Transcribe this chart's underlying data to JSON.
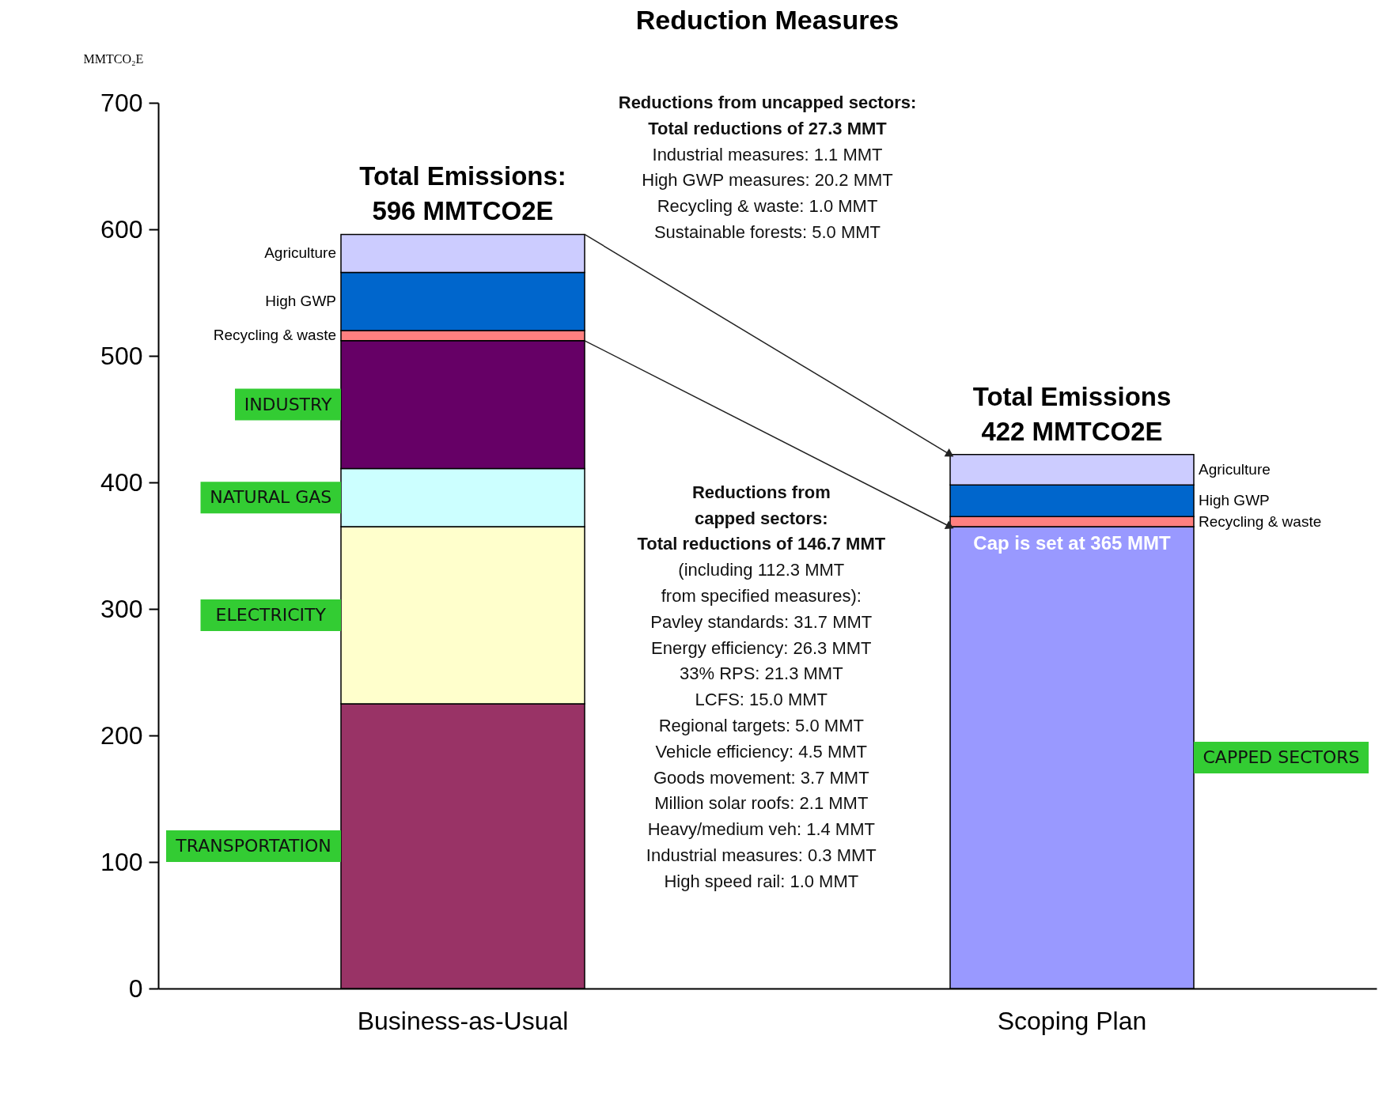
{
  "chart_data": {
    "type": "bar",
    "stacked": true,
    "title": "Reduction Measures",
    "ylabel": "MMTCO₂E",
    "categories": [
      "Business-as-Usual",
      "Scoping Plan"
    ],
    "ylim": [
      0,
      700
    ],
    "yticks": [
      0,
      100,
      200,
      300,
      400,
      500,
      600,
      700
    ],
    "grid": false,
    "legend": false,
    "series": [
      {
        "name": "TRANSPORTATION",
        "color": "#993366",
        "values": [
          225,
          null
        ]
      },
      {
        "name": "ELECTRICITY",
        "color": "#ffffcc",
        "values": [
          140,
          null
        ]
      },
      {
        "name": "NATURAL GAS",
        "color": "#ccffff",
        "values": [
          46,
          null
        ]
      },
      {
        "name": "INDUSTRY",
        "color": "#660066",
        "values": [
          101,
          null
        ]
      },
      {
        "name": "CAPPED SECTORS",
        "color": "#9999ff",
        "values": [
          null,
          365
        ]
      },
      {
        "name": "Recycling & waste",
        "color": "#ff8080",
        "values": [
          8,
          8
        ]
      },
      {
        "name": "High GWP",
        "color": "#0066cc",
        "values": [
          46,
          25
        ]
      },
      {
        "name": "Agriculture",
        "color": "#ccccff",
        "values": [
          30,
          24
        ]
      }
    ],
    "annotations": [
      {
        "text": "Total Emissions:\n596 MMTCO2E",
        "x": "Business-as-Usual",
        "y": 596
      },
      {
        "text": "Total Emissions\n422 MMTCO2E",
        "x": "Scoping Plan",
        "y": 422
      },
      {
        "text": "Cap is set at 365 MMT",
        "x": "Scoping Plan",
        "y": 365
      },
      "Reductions from uncapped sectors:\nTotal reductions of 27.3 MMT",
      "Industrial measures:   1.1 MMT\nHigh GWP measures:   20.2 MMT\nRecycling & waste:   1.0 MMT\nSustainable forests:   5.0 MMT",
      "Reductions from\ncapped sectors:\nTotal reductions of 146.7 MMT",
      "(including 112.3 MMT\nfrom specified measures):\nPavley standards:   31.7 MMT\nEnergy efficiency:   26.3 MMT\n33% RPS:   21.3 MMT\nLCFS:   15.0 MMT\nRegional targets:   5.0 MMT\nVehicle efficiency:   4.5 MMT\nGoods movement:   3.7 MMT\nMillion solar roofs:   2.1 MMT\nHeavy/medium veh:   1.4 MMT\nIndustrial measures: 0.3 MMT\nHigh speed rail:   1.0 MMT"
    ]
  }
}
